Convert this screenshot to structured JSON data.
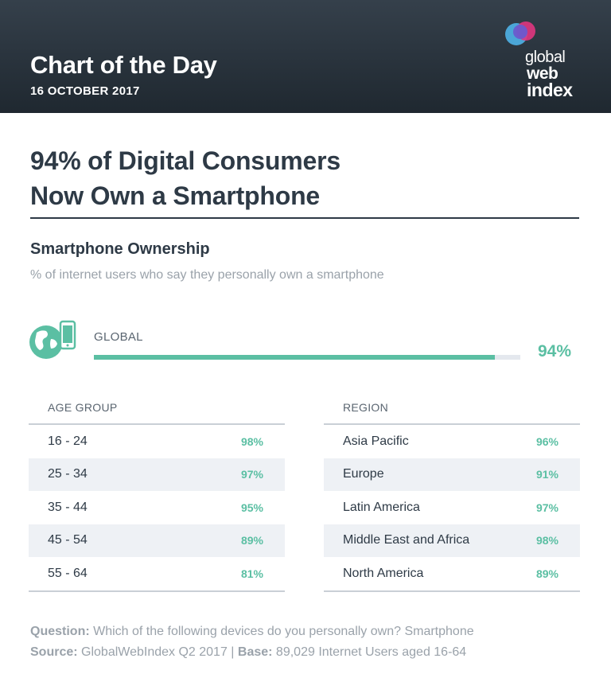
{
  "header": {
    "title": "Chart of the Day",
    "date": "16 OCTOBER 2017"
  },
  "logo": {
    "line1": "global",
    "line2": "web",
    "line3": "index",
    "colors": [
      "#6a5acd",
      "#e0367f",
      "#4fb3e8"
    ]
  },
  "headline": {
    "line1": "94% of Digital Consumers",
    "line2": "Now Own a Smartphone"
  },
  "chart_data": {
    "type": "table",
    "title": "Smartphone Ownership",
    "subtitle": "% of internet users who say they personally own a smartphone",
    "global": {
      "label": "GLOBAL",
      "value": 94,
      "display": "94%"
    },
    "tables": [
      {
        "header": "AGE GROUP",
        "rows": [
          {
            "label": "16 - 24",
            "value": 98,
            "display": "98%"
          },
          {
            "label": "25 - 34",
            "value": 97,
            "display": "97%"
          },
          {
            "label": "35 - 44",
            "value": 95,
            "display": "95%"
          },
          {
            "label": "45 - 54",
            "value": 89,
            "display": "89%"
          },
          {
            "label": "55 - 64",
            "value": 81,
            "display": "81%"
          }
        ]
      },
      {
        "header": "REGION",
        "rows": [
          {
            "label": "Asia Pacific",
            "value": 96,
            "display": "96%"
          },
          {
            "label": "Europe",
            "value": 91,
            "display": "91%"
          },
          {
            "label": "Latin America",
            "value": 97,
            "display": "97%"
          },
          {
            "label": "Middle East and Africa",
            "value": 98,
            "display": "98%"
          },
          {
            "label": "North America",
            "value": 89,
            "display": "89%"
          }
        ]
      }
    ]
  },
  "footer": {
    "question_label": "Question:",
    "question_text": " Which of the following devices do you personally own? Smartphone",
    "source_label": "Source:",
    "source_text": " GlobalWebIndex Q2 2017 | ",
    "base_label": "Base:",
    "base_text": " 89,029 Internet Users aged 16-64"
  },
  "colors": {
    "accent": "#5bbfa3",
    "header_bg": "#263039",
    "text": "#2e3a46",
    "muted": "#9aa2aa"
  }
}
